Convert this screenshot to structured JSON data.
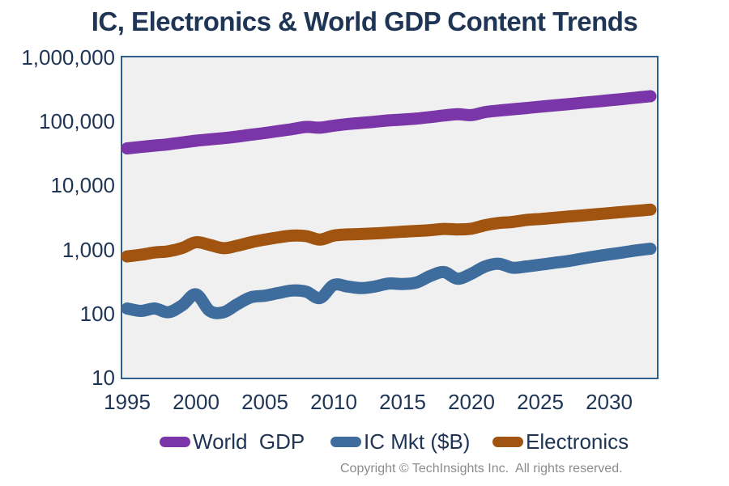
{
  "title": "IC, Electronics & World GDP Content Trends",
  "copyright": "Copyright © TechInsights Inc.  All rights reserved.",
  "colors": {
    "title_text": "#1F3555",
    "axis_text": "#1F3555",
    "plot_background": "#F0F0F0",
    "plot_border": "#2E5F8F",
    "world_gdp": "#7A35A9",
    "ic_mkt": "#3E6C9D",
    "electronics": "#A0540F",
    "copyright_text": "#8C8C8C"
  },
  "y_axis": {
    "scale": "log",
    "ticks": [
      {
        "label": "1,000,000",
        "value": 1000000
      },
      {
        "label": "100,000",
        "value": 100000
      },
      {
        "label": "10,000",
        "value": 10000
      },
      {
        "label": "1,000",
        "value": 1000
      },
      {
        "label": "100",
        "value": 100
      },
      {
        "label": "10",
        "value": 10
      }
    ]
  },
  "x_axis": {
    "ticks": [
      1995,
      2000,
      2005,
      2010,
      2015,
      2020,
      2025,
      2030
    ]
  },
  "legend": [
    {
      "id": "world-gdp",
      "label": "World  GDP",
      "color": "#7A35A9"
    },
    {
      "id": "ic-mkt",
      "label": "IC Mkt ($B)",
      "color": "#3E6C9D"
    },
    {
      "id": "electronics",
      "label": "Electronics",
      "color": "#A0540F"
    }
  ],
  "chart_data": {
    "type": "line",
    "title": "IC, Electronics & World GDP Content Trends",
    "xlabel": "",
    "ylabel": "",
    "x_range": [
      1995,
      2033
    ],
    "y_scale": "log",
    "ylim": [
      10,
      1000000
    ],
    "grid": false,
    "legend_position": "bottom",
    "line_style": "smooth, thick rounded strokes",
    "x": [
      1995,
      1996,
      1997,
      1998,
      1999,
      2000,
      2001,
      2002,
      2003,
      2004,
      2005,
      2006,
      2007,
      2008,
      2009,
      2010,
      2011,
      2012,
      2013,
      2014,
      2015,
      2016,
      2017,
      2018,
      2019,
      2020,
      2021,
      2022,
      2023,
      2024,
      2025,
      2026,
      2027,
      2028,
      2029,
      2030,
      2031,
      2032,
      2033
    ],
    "series": [
      {
        "name": "World  GDP",
        "color": "#7A35A9",
        "units": "$B (read from log axis)",
        "values": [
          38000,
          40000,
          42000,
          44000,
          47000,
          50000,
          52500,
          55000,
          58000,
          62000,
          66000,
          71000,
          76000,
          82000,
          80000,
          86000,
          91000,
          95000,
          99000,
          104000,
          107000,
          111000,
          117000,
          124000,
          130000,
          126000,
          140000,
          148000,
          155000,
          162000,
          170000,
          178000,
          186000,
          195000,
          204000,
          214000,
          224000,
          236000,
          248000
        ]
      },
      {
        "name": "IC Mkt ($B)",
        "color": "#3E6C9D",
        "units": "$B (read from log axis)",
        "values": [
          120,
          110,
          120,
          105,
          135,
          200,
          110,
          105,
          140,
          180,
          190,
          210,
          230,
          220,
          175,
          280,
          265,
          250,
          265,
          295,
          290,
          305,
          385,
          445,
          350,
          420,
          545,
          600,
          520,
          545,
          580,
          620,
          660,
          720,
          780,
          840,
          900,
          970,
          1030
        ]
      },
      {
        "name": "Electronics",
        "color": "#A0540F",
        "units": "$B (read from log axis)",
        "values": [
          780,
          830,
          900,
          940,
          1060,
          1300,
          1180,
          1050,
          1150,
          1300,
          1430,
          1550,
          1650,
          1620,
          1430,
          1650,
          1720,
          1750,
          1790,
          1840,
          1900,
          1950,
          2010,
          2100,
          2060,
          2120,
          2400,
          2600,
          2700,
          2900,
          3000,
          3130,
          3270,
          3400,
          3550,
          3700,
          3870,
          4030,
          4200
        ]
      }
    ]
  }
}
